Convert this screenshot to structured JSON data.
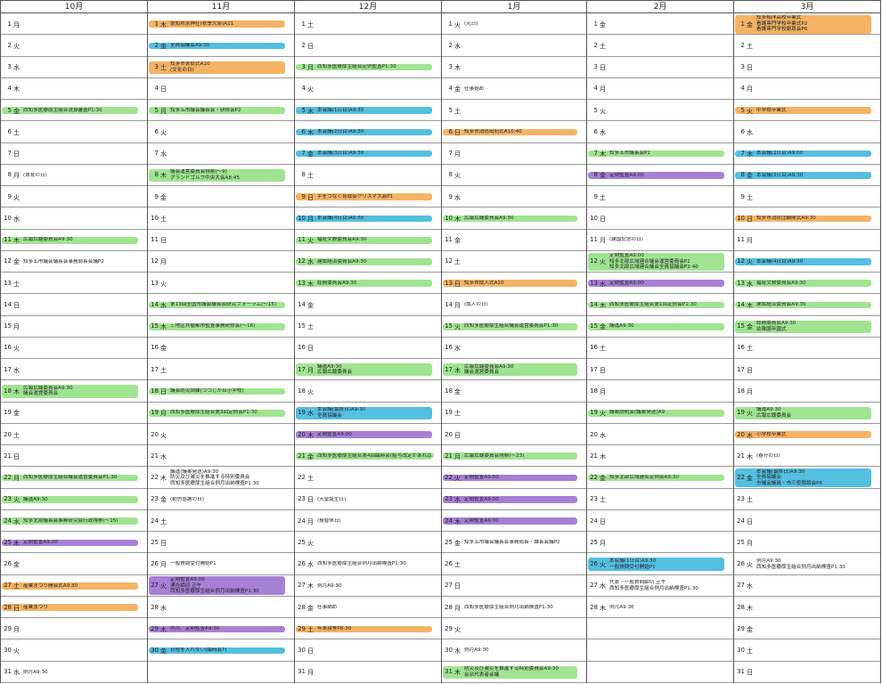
{
  "page_number": "1",
  "colors": {
    "orange": "#f2a950",
    "green": "#93e083",
    "blue": "#3cb6dc",
    "purple": "#9b6ed0"
  },
  "months": [
    {
      "label": "10月",
      "days": [
        [
          "1",
          "月",
          "",
          ""
        ],
        [
          "2",
          "火",
          "",
          ""
        ],
        [
          "3",
          "水",
          "",
          ""
        ],
        [
          "4",
          "木",
          "",
          ""
        ],
        [
          "5",
          "金",
          "西知多医療厚生組合決算審査P1:30",
          "green"
        ],
        [
          "6",
          "土",
          "",
          ""
        ],
        [
          "7",
          "日",
          "",
          ""
        ],
        [
          "8",
          "月",
          "(体育の日)",
          ""
        ],
        [
          "9",
          "火",
          "",
          ""
        ],
        [
          "10",
          "水",
          "",
          ""
        ],
        [
          "11",
          "木",
          "広報広聴委員会A9:30",
          "green"
        ],
        [
          "12",
          "金",
          "知多五市議会議長会事務局長会議P2",
          ""
        ],
        [
          "13",
          "土",
          "",
          ""
        ],
        [
          "14",
          "日",
          "",
          ""
        ],
        [
          "15",
          "月",
          "",
          ""
        ],
        [
          "16",
          "火",
          "",
          ""
        ],
        [
          "17",
          "水",
          "",
          ""
        ],
        [
          "18",
          "木",
          "広報広聴委員会A9:30\n議会運営委員会",
          "green"
        ],
        [
          "19",
          "金",
          "",
          ""
        ],
        [
          "20",
          "土",
          "",
          ""
        ],
        [
          "21",
          "日",
          "",
          ""
        ],
        [
          "22",
          "月",
          "西知多医療厚生組合議会運営委員会P1:30",
          "green"
        ],
        [
          "23",
          "火",
          "議運A9:30",
          "green"
        ],
        [
          "24",
          "水",
          "知多北部議長会事務研究会行政視察(〜25)",
          "green"
        ],
        [
          "25",
          "木",
          "定期監査A9:00",
          "purple"
        ],
        [
          "26",
          "金",
          "",
          ""
        ],
        [
          "27",
          "土",
          "産業まつり開会式A9:30",
          "orange"
        ],
        [
          "28",
          "日",
          "産業まつり",
          "orange"
        ],
        [
          "29",
          "月",
          "",
          ""
        ],
        [
          "30",
          "火",
          "",
          ""
        ],
        [
          "31",
          "水",
          "例月A9:30",
          ""
        ]
      ]
    },
    {
      "label": "11月",
      "days": [
        [
          "1",
          "木",
          "愛知県水神社(秋季大祭)A11",
          "orange"
        ],
        [
          "2",
          "金",
          "全員協議会A9:30",
          "blue"
        ],
        [
          "3",
          "土",
          "知多市表彰式A10\n(文化の日)",
          "orange"
        ],
        [
          "4",
          "日",
          "",
          ""
        ],
        [
          "5",
          "月",
          "知多五市議会議長会・研修会P2",
          "green"
        ],
        [
          "6",
          "火",
          "",
          ""
        ],
        [
          "7",
          "水",
          "",
          ""
        ],
        [
          "8",
          "木",
          "議会運営委員会視察(〜9)\nグランドゴルフ中央大会A8:45",
          "green"
        ],
        [
          "9",
          "金",
          "",
          ""
        ],
        [
          "10",
          "土",
          "",
          ""
        ],
        [
          "11",
          "日",
          "",
          ""
        ],
        [
          "12",
          "月",
          "",
          ""
        ],
        [
          "13",
          "火",
          "",
          ""
        ],
        [
          "14",
          "水",
          "第13回全国市議会議長会研究フォーラム(〜15)",
          "green"
        ],
        [
          "15",
          "木",
          "三地区共催都市監査事務研修会(〜16)",
          "green"
        ],
        [
          "16",
          "金",
          "",
          ""
        ],
        [
          "17",
          "土",
          "",
          ""
        ],
        [
          "18",
          "日",
          "議会防災訓練(つつじが丘小学校)",
          "green"
        ],
        [
          "19",
          "月",
          "西知多医療厚生組合第3回定例会P1:30",
          "green"
        ],
        [
          "20",
          "火",
          "",
          ""
        ],
        [
          "21",
          "水",
          "",
          ""
        ],
        [
          "22",
          "木",
          "議運(議案発送)A9:30\n防災及び減災を推進する特別委員会\n西知多医療厚生組合例月出納検査P1:30",
          ""
        ],
        [
          "23",
          "金",
          "(勤労感謝の日)",
          ""
        ],
        [
          "24",
          "土",
          "",
          ""
        ],
        [
          "25",
          "日",
          "",
          ""
        ],
        [
          "26",
          "月",
          "一般質問受付開始P1",
          ""
        ],
        [
          "27",
          "火",
          "定期監査A9:00\n通告締切 正午\n西知多医療厚生組合例月出納検査P1:30",
          "purple"
        ],
        [
          "28",
          "水",
          "",
          ""
        ],
        [
          "29",
          "木",
          "例月、定期監査A9:30",
          "purple"
        ],
        [
          "30",
          "金",
          "日程を入れない(臨時会?)",
          "blue"
        ],
        [
          "",
          "",
          "",
          ""
        ]
      ]
    },
    {
      "label": "12月",
      "days": [
        [
          "1",
          "土",
          "",
          ""
        ],
        [
          "2",
          "日",
          "",
          ""
        ],
        [
          "3",
          "月",
          "西知多医療厚生組合定例監査P1:30",
          "green"
        ],
        [
          "4",
          "火",
          "",
          ""
        ],
        [
          "5",
          "水",
          "本会議(1日目)A9:30",
          "blue"
        ],
        [
          "6",
          "木",
          "本会議(2日目)A9:30",
          "blue"
        ],
        [
          "7",
          "金",
          "本会議(3日目)A9:30",
          "blue"
        ],
        [
          "8",
          "土",
          "",
          ""
        ],
        [
          "9",
          "日",
          "手をつなぐ育成会クリスマス会P1",
          "orange"
        ],
        [
          "10",
          "月",
          "本会議(4日目)A9:30",
          "blue"
        ],
        [
          "11",
          "火",
          "福祉文教委員会A9:30",
          "green"
        ],
        [
          "12",
          "水",
          "建設経済委員会A9:30",
          "green"
        ],
        [
          "13",
          "木",
          "総務委員会A9:30",
          "green"
        ],
        [
          "14",
          "金",
          "",
          ""
        ],
        [
          "15",
          "土",
          "",
          ""
        ],
        [
          "16",
          "日",
          "",
          ""
        ],
        [
          "17",
          "月",
          "議運A9:30\n広報広聴委員会",
          "green"
        ],
        [
          "18",
          "火",
          "",
          ""
        ],
        [
          "19",
          "水",
          "本会議(最終日)A9:30\n全員協議会",
          "blue"
        ],
        [
          "20",
          "木",
          "定期監査A9:00",
          "purple"
        ],
        [
          "21",
          "金",
          "西知多医療厚生組合第4回臨時会(給与改定があれば)",
          "green"
        ],
        [
          "22",
          "土",
          "",
          ""
        ],
        [
          "23",
          "日",
          "(天皇誕生日)",
          ""
        ],
        [
          "24",
          "月",
          "(振替休日)",
          ""
        ],
        [
          "25",
          "火",
          "",
          ""
        ],
        [
          "26",
          "水",
          "西知多医療厚生組合例月出納検査P1:30",
          ""
        ],
        [
          "27",
          "木",
          "例月A9:30",
          ""
        ],
        [
          "28",
          "金",
          "仕事納め",
          ""
        ],
        [
          "29",
          "土",
          "年末夜警P8:30",
          "orange"
        ],
        [
          "30",
          "日",
          "",
          ""
        ],
        [
          "31",
          "月",
          "",
          ""
        ]
      ]
    },
    {
      "label": "1月",
      "days": [
        [
          "1",
          "火",
          "(元日)",
          ""
        ],
        [
          "2",
          "水",
          "",
          ""
        ],
        [
          "3",
          "木",
          "",
          ""
        ],
        [
          "4",
          "金",
          "仕事始め",
          ""
        ],
        [
          "5",
          "土",
          "",
          ""
        ],
        [
          "6",
          "日",
          "知多市消防出初式A10:40",
          "orange"
        ],
        [
          "7",
          "月",
          "",
          ""
        ],
        [
          "8",
          "火",
          "",
          ""
        ],
        [
          "9",
          "水",
          "",
          ""
        ],
        [
          "10",
          "木",
          "広報広聴委員会A9:30",
          "green"
        ],
        [
          "11",
          "金",
          "",
          ""
        ],
        [
          "12",
          "土",
          "",
          ""
        ],
        [
          "13",
          "日",
          "知多市成人式A10",
          "orange"
        ],
        [
          "14",
          "月",
          "(成人の日)",
          ""
        ],
        [
          "15",
          "火",
          "西知多医療厚生組合議会運営委員会P1:30",
          "green"
        ],
        [
          "16",
          "水",
          "",
          ""
        ],
        [
          "17",
          "木",
          "広報広聴委員会A9:30\n議会運営委員会",
          "green"
        ],
        [
          "18",
          "金",
          "",
          ""
        ],
        [
          "19",
          "土",
          "",
          ""
        ],
        [
          "20",
          "日",
          "",
          ""
        ],
        [
          "21",
          "月",
          "広報広聴委員会視察(〜23)",
          "green"
        ],
        [
          "22",
          "火",
          "定期監査A9:00",
          "purple"
        ],
        [
          "23",
          "水",
          "定期監査A9:00",
          "purple"
        ],
        [
          "24",
          "木",
          "定期監査A9:00",
          "purple"
        ],
        [
          "25",
          "金",
          "知多五市議会議長会事務局長・課長会議P2",
          ""
        ],
        [
          "26",
          "土",
          "",
          ""
        ],
        [
          "27",
          "日",
          "",
          ""
        ],
        [
          "28",
          "月",
          "西知多医療厚生組合例月出納検査P1:30",
          ""
        ],
        [
          "29",
          "火",
          "",
          ""
        ],
        [
          "30",
          "水",
          "例月A9:30",
          ""
        ],
        [
          "31",
          "木",
          "防災及び減災を推進する特別委員会A9:30\n会派代表者会議",
          "green"
        ]
      ]
    },
    {
      "label": "2月",
      "days": [
        [
          "1",
          "金",
          "",
          ""
        ],
        [
          "2",
          "土",
          "",
          ""
        ],
        [
          "3",
          "日",
          "",
          ""
        ],
        [
          "4",
          "月",
          "",
          ""
        ],
        [
          "5",
          "火",
          "",
          ""
        ],
        [
          "6",
          "水",
          "",
          ""
        ],
        [
          "7",
          "木",
          "知多五市議長会P2",
          "green"
        ],
        [
          "8",
          "金",
          "定期監査A9:00",
          "purple"
        ],
        [
          "9",
          "土",
          "",
          ""
        ],
        [
          "10",
          "日",
          "",
          ""
        ],
        [
          "11",
          "月",
          "(建国記念の日)",
          ""
        ],
        [
          "12",
          "火",
          "定期監査A9:00\n知多北部広域連合議会運営委員会P2\n知多北部広域連合議会全員協議会P2:40",
          "green"
        ],
        [
          "13",
          "水",
          "定期監査A9:00",
          "purple"
        ],
        [
          "14",
          "木",
          "西知多医療厚生組合第1回定例会P1:30",
          "green"
        ],
        [
          "15",
          "金",
          "議運A9:30",
          "green"
        ],
        [
          "16",
          "土",
          "",
          ""
        ],
        [
          "17",
          "日",
          "",
          ""
        ],
        [
          "18",
          "月",
          "",
          ""
        ],
        [
          "19",
          "火",
          "議案説明会(議案発送)A9",
          "green"
        ],
        [
          "20",
          "水",
          "",
          ""
        ],
        [
          "21",
          "木",
          "",
          ""
        ],
        [
          "22",
          "金",
          "知多北部広域連合定例会A9:30",
          "green"
        ],
        [
          "23",
          "土",
          "",
          ""
        ],
        [
          "24",
          "日",
          "",
          ""
        ],
        [
          "25",
          "月",
          "",
          ""
        ],
        [
          "26",
          "火",
          "本会議(1日目)A9:30\n一般質問受付開始P1",
          "blue"
        ],
        [
          "27",
          "水",
          "代表・一般質問締切 正午\n西知多医療厚生組合例月出納検査P1:30",
          ""
        ],
        [
          "28",
          "木",
          "例月A9:30",
          ""
        ],
        [
          "",
          "",
          "",
          ""
        ],
        [
          "",
          "",
          "",
          ""
        ],
        [
          "",
          "",
          "",
          ""
        ]
      ]
    },
    {
      "label": "3月",
      "days": [
        [
          "1",
          "金",
          "知多翔洋高校卒業式\n看護専門学校卒業式P2\n看護専門学校謝恩会P6",
          "orange"
        ],
        [
          "2",
          "土",
          "",
          ""
        ],
        [
          "3",
          "日",
          "",
          ""
        ],
        [
          "4",
          "月",
          "",
          ""
        ],
        [
          "5",
          "火",
          "中学校卒業式",
          "orange"
        ],
        [
          "6",
          "水",
          "",
          ""
        ],
        [
          "7",
          "木",
          "本会議(2日目)A9:00",
          "blue"
        ],
        [
          "8",
          "金",
          "本会議(3日目)A9:30",
          "blue"
        ],
        [
          "9",
          "土",
          "",
          ""
        ],
        [
          "10",
          "日",
          "知多市消防団観閲式A9:30",
          "orange"
        ],
        [
          "11",
          "月",
          "",
          ""
        ],
        [
          "12",
          "火",
          "本会議(4日目)A9:30",
          "blue"
        ],
        [
          "13",
          "水",
          "福祉文教委員会A9:30",
          "green"
        ],
        [
          "14",
          "木",
          "建設経済委員会A9:30",
          "green"
        ],
        [
          "15",
          "金",
          "総務委員会A9:30\n幼稚園卒園式",
          "green"
        ],
        [
          "16",
          "土",
          "",
          ""
        ],
        [
          "17",
          "日",
          "",
          ""
        ],
        [
          "18",
          "月",
          "",
          ""
        ],
        [
          "19",
          "火",
          "議運A9:30\n広報広聴委員会",
          "green"
        ],
        [
          "20",
          "水",
          "小学校卒業式",
          "orange"
        ],
        [
          "21",
          "木",
          "(春分の日)",
          ""
        ],
        [
          "22",
          "金",
          "本会議(最終日)A9:30\n全員協議会\n市議会議員・市三役懇談会P6",
          "blue"
        ],
        [
          "23",
          "土",
          "",
          ""
        ],
        [
          "24",
          "日",
          "",
          ""
        ],
        [
          "25",
          "月",
          "",
          ""
        ],
        [
          "26",
          "火",
          "例月A9:30\n西知多医療厚生組合例月出納検査P1:30",
          ""
        ],
        [
          "27",
          "水",
          "",
          ""
        ],
        [
          "28",
          "木",
          "",
          ""
        ],
        [
          "29",
          "金",
          "",
          ""
        ],
        [
          "30",
          "土",
          "",
          ""
        ],
        [
          "31",
          "日",
          "",
          ""
        ]
      ]
    }
  ]
}
